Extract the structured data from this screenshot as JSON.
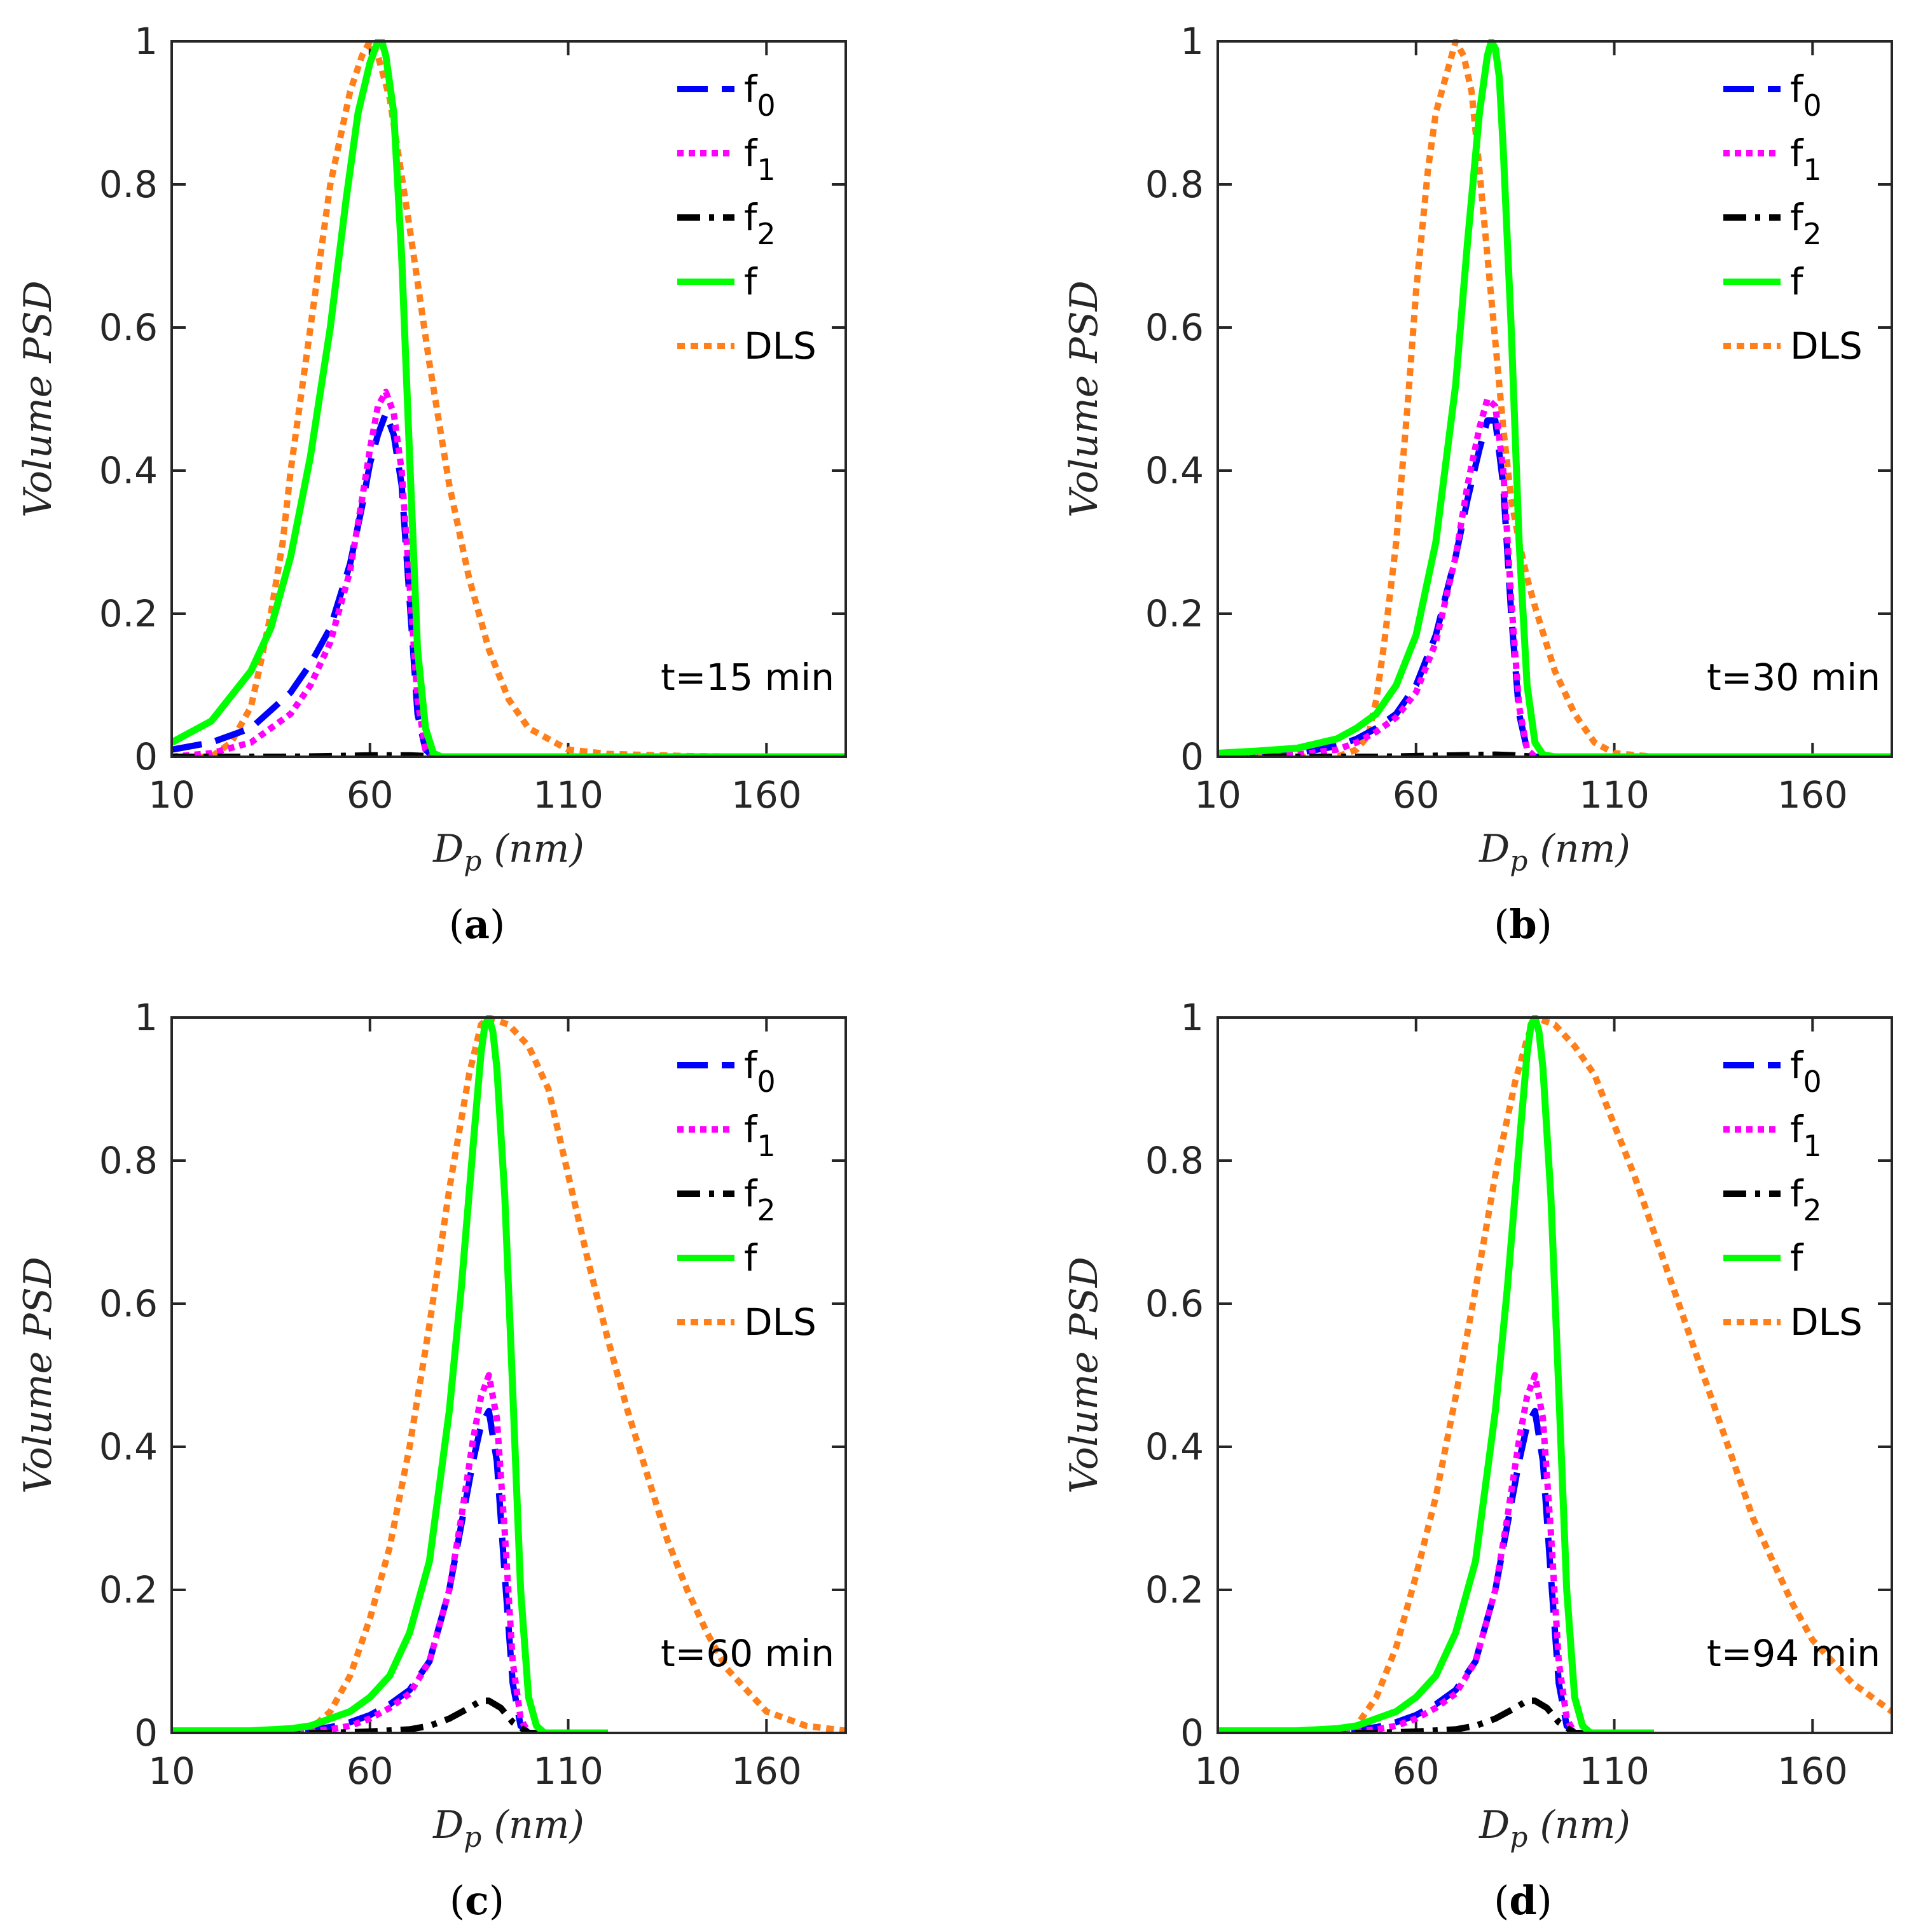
{
  "styles": {
    "f0": {
      "color": "#0000ff",
      "dash": "48 22"
    },
    "f1": {
      "color": "#ff00ff",
      "dash": "10 8"
    },
    "f2": {
      "color": "#000000",
      "dash": "36 14 8 14"
    },
    "f": {
      "color": "#00ff00",
      "dash": ""
    },
    "DLS": {
      "color": "#ff7f1a",
      "dash": "12 9"
    }
  },
  "chart_data": [
    {
      "type": "line",
      "panel_label": "a",
      "annotation": "t=15 min",
      "xlabel": "D_p (nm)",
      "ylabel": "Volume PSD",
      "xlim": [
        10,
        180
      ],
      "ylim": [
        0,
        1
      ],
      "xticks": [
        10,
        60,
        110,
        160
      ],
      "yticks": [
        0,
        0.2,
        0.4,
        0.6,
        0.8,
        1
      ],
      "series": [
        {
          "name": "f0",
          "x": [
            10,
            20,
            30,
            40,
            45,
            50,
            55,
            58,
            60,
            62,
            64,
            66,
            68,
            70,
            72,
            74,
            76,
            78,
            80,
            90,
            120,
            180
          ],
          "y": [
            0.01,
            0.02,
            0.04,
            0.09,
            0.13,
            0.18,
            0.27,
            0.35,
            0.41,
            0.45,
            0.48,
            0.45,
            0.38,
            0.22,
            0.06,
            0.01,
            0,
            0,
            0,
            0,
            0,
            0
          ]
        },
        {
          "name": "f1",
          "x": [
            10,
            20,
            30,
            40,
            45,
            50,
            55,
            58,
            60,
            62,
            64,
            66,
            68,
            70,
            72,
            74,
            76,
            78,
            80,
            90,
            120,
            180
          ],
          "y": [
            0.0,
            0.005,
            0.02,
            0.06,
            0.1,
            0.16,
            0.26,
            0.36,
            0.43,
            0.49,
            0.51,
            0.48,
            0.4,
            0.24,
            0.08,
            0.01,
            0,
            0,
            0,
            0,
            0,
            0
          ]
        },
        {
          "name": "f2",
          "x": [
            10,
            40,
            60,
            70,
            80,
            120,
            180
          ],
          "y": [
            0,
            0,
            0.002,
            0.002,
            0,
            0,
            0
          ]
        },
        {
          "name": "f",
          "x": [
            10,
            20,
            30,
            35,
            40,
            45,
            50,
            54,
            57,
            60,
            62,
            63,
            64,
            66,
            68,
            70,
            72,
            74,
            76,
            78,
            80,
            120,
            180
          ],
          "y": [
            0.02,
            0.05,
            0.12,
            0.18,
            0.28,
            0.42,
            0.6,
            0.78,
            0.9,
            0.97,
            1.0,
            1.0,
            0.98,
            0.9,
            0.7,
            0.42,
            0.15,
            0.04,
            0.005,
            0,
            0,
            0,
            0
          ]
        },
        {
          "name": "DLS",
          "x": [
            10,
            20,
            25,
            30,
            32,
            35,
            38,
            40,
            45,
            50,
            55,
            58,
            60,
            62,
            65,
            70,
            75,
            80,
            85,
            90,
            95,
            100,
            110,
            120,
            140,
            160,
            180
          ],
          "y": [
            0,
            0,
            0.02,
            0.07,
            0.12,
            0.2,
            0.3,
            0.4,
            0.6,
            0.8,
            0.93,
            0.98,
            1.0,
            0.98,
            0.92,
            0.74,
            0.55,
            0.38,
            0.25,
            0.15,
            0.08,
            0.04,
            0.01,
            0.004,
            0.001,
            0,
            0
          ]
        }
      ]
    },
    {
      "type": "line",
      "panel_label": "b",
      "annotation": "t=30 min",
      "xlabel": "D_p (nm)",
      "ylabel": "Volume PSD",
      "xlim": [
        10,
        180
      ],
      "ylim": [
        0,
        1
      ],
      "xticks": [
        10,
        60,
        110,
        160
      ],
      "yticks": [
        0,
        0.2,
        0.4,
        0.6,
        0.8,
        1
      ],
      "series": [
        {
          "name": "f0",
          "x": [
            10,
            30,
            40,
            45,
            50,
            55,
            60,
            65,
            70,
            73,
            76,
            78,
            80,
            82,
            84,
            86,
            88,
            90,
            95,
            120,
            180
          ],
          "y": [
            0,
            0.005,
            0.015,
            0.025,
            0.04,
            0.06,
            0.1,
            0.17,
            0.28,
            0.36,
            0.43,
            0.47,
            0.47,
            0.38,
            0.2,
            0.06,
            0.01,
            0,
            0,
            0,
            0
          ]
        },
        {
          "name": "f1",
          "x": [
            10,
            30,
            40,
            45,
            50,
            55,
            60,
            65,
            70,
            73,
            76,
            78,
            80,
            82,
            84,
            86,
            88,
            90,
            95,
            120,
            180
          ],
          "y": [
            0,
            0.003,
            0.01,
            0.02,
            0.035,
            0.055,
            0.09,
            0.16,
            0.28,
            0.38,
            0.46,
            0.5,
            0.49,
            0.4,
            0.22,
            0.07,
            0.01,
            0,
            0,
            0,
            0
          ]
        },
        {
          "name": "f2",
          "x": [
            10,
            50,
            70,
            80,
            85,
            90,
            120,
            180
          ],
          "y": [
            0,
            0,
            0.002,
            0.003,
            0.002,
            0,
            0,
            0
          ]
        },
        {
          "name": "f",
          "x": [
            10,
            20,
            30,
            40,
            45,
            50,
            55,
            60,
            65,
            70,
            73,
            76,
            78,
            79,
            80,
            81,
            82,
            84,
            86,
            88,
            90,
            92,
            95,
            120,
            180
          ],
          "y": [
            0.005,
            0.008,
            0.012,
            0.025,
            0.04,
            0.06,
            0.1,
            0.17,
            0.3,
            0.52,
            0.72,
            0.9,
            0.98,
            1.0,
            0.99,
            0.95,
            0.85,
            0.6,
            0.3,
            0.1,
            0.02,
            0.003,
            0,
            0,
            0
          ]
        },
        {
          "name": "DLS",
          "x": [
            10,
            30,
            40,
            45,
            48,
            50,
            52,
            55,
            58,
            60,
            63,
            65,
            68,
            70,
            72,
            74,
            76,
            78,
            80,
            82,
            84,
            86,
            88,
            90,
            95,
            100,
            105,
            110,
            120,
            180
          ],
          "y": [
            0,
            0,
            0,
            0.01,
            0.03,
            0.08,
            0.16,
            0.3,
            0.5,
            0.65,
            0.82,
            0.9,
            0.96,
            1.0,
            0.98,
            0.93,
            0.82,
            0.7,
            0.58,
            0.46,
            0.36,
            0.3,
            0.25,
            0.21,
            0.12,
            0.06,
            0.02,
            0.005,
            0,
            0
          ]
        }
      ]
    },
    {
      "type": "line",
      "panel_label": "c",
      "annotation": "t=60 min",
      "xlabel": "D_p (nm)",
      "ylabel": "Volume PSD",
      "xlim": [
        10,
        180
      ],
      "ylim": [
        0,
        1
      ],
      "xticks": [
        10,
        60,
        110,
        160
      ],
      "yticks": [
        0,
        0.2,
        0.4,
        0.6,
        0.8,
        1
      ],
      "series": [
        {
          "name": "f0",
          "x": [
            10,
            40,
            50,
            55,
            60,
            65,
            70,
            75,
            80,
            83,
            86,
            88,
            90,
            92,
            94,
            96,
            98,
            100,
            105,
            120
          ],
          "y": [
            0,
            0.002,
            0.008,
            0.015,
            0.025,
            0.04,
            0.06,
            0.1,
            0.2,
            0.29,
            0.38,
            0.43,
            0.45,
            0.38,
            0.22,
            0.07,
            0.01,
            0,
            0,
            0
          ]
        },
        {
          "name": "f1",
          "x": [
            10,
            40,
            50,
            55,
            60,
            65,
            70,
            75,
            80,
            83,
            86,
            88,
            90,
            92,
            94,
            96,
            98,
            100,
            105,
            120
          ],
          "y": [
            0,
            0.001,
            0.005,
            0.01,
            0.02,
            0.035,
            0.055,
            0.1,
            0.2,
            0.3,
            0.41,
            0.47,
            0.5,
            0.44,
            0.28,
            0.1,
            0.02,
            0,
            0,
            0
          ]
        },
        {
          "name": "f2",
          "x": [
            10,
            50,
            60,
            70,
            75,
            80,
            85,
            88,
            90,
            93,
            96,
            100,
            120
          ],
          "y": [
            0,
            0,
            0.002,
            0.005,
            0.01,
            0.02,
            0.035,
            0.045,
            0.045,
            0.035,
            0.015,
            0,
            0
          ]
        },
        {
          "name": "f",
          "x": [
            10,
            30,
            40,
            45,
            50,
            55,
            60,
            65,
            70,
            75,
            80,
            83,
            86,
            88,
            89,
            90,
            91,
            92,
            94,
            96,
            98,
            100,
            102,
            104,
            110,
            120
          ],
          "y": [
            0.003,
            0.003,
            0.006,
            0.01,
            0.02,
            0.03,
            0.05,
            0.08,
            0.14,
            0.24,
            0.45,
            0.62,
            0.82,
            0.95,
            0.99,
            1.0,
            0.98,
            0.93,
            0.75,
            0.48,
            0.2,
            0.05,
            0.01,
            0,
            0,
            0
          ]
        },
        {
          "name": "DLS",
          "x": [
            10,
            30,
            40,
            45,
            50,
            55,
            60,
            65,
            70,
            75,
            80,
            85,
            88,
            90,
            95,
            100,
            105,
            110,
            115,
            120,
            125,
            130,
            135,
            140,
            145,
            150,
            155,
            160,
            170,
            180
          ],
          "y": [
            0,
            0,
            0,
            0.005,
            0.03,
            0.08,
            0.16,
            0.26,
            0.4,
            0.57,
            0.76,
            0.92,
            0.99,
            1.0,
            0.99,
            0.96,
            0.9,
            0.78,
            0.66,
            0.55,
            0.45,
            0.36,
            0.27,
            0.2,
            0.14,
            0.09,
            0.06,
            0.03,
            0.01,
            0.003
          ]
        }
      ]
    },
    {
      "type": "line",
      "panel_label": "d",
      "annotation": "t=94 min",
      "xlabel": "D_p (nm)",
      "ylabel": "Volume PSD",
      "xlim": [
        10,
        180
      ],
      "ylim": [
        0,
        1
      ],
      "xticks": [
        10,
        60,
        110,
        160
      ],
      "yticks": [
        0,
        0.2,
        0.4,
        0.6,
        0.8,
        1
      ],
      "series": [
        {
          "name": "f0",
          "x": [
            10,
            40,
            50,
            55,
            60,
            65,
            70,
            75,
            80,
            83,
            86,
            88,
            90,
            92,
            94,
            96,
            98,
            100,
            105,
            120
          ],
          "y": [
            0,
            0.002,
            0.008,
            0.015,
            0.025,
            0.04,
            0.06,
            0.1,
            0.2,
            0.29,
            0.38,
            0.43,
            0.45,
            0.38,
            0.22,
            0.07,
            0.01,
            0,
            0,
            0
          ]
        },
        {
          "name": "f1",
          "x": [
            10,
            40,
            50,
            55,
            60,
            65,
            70,
            75,
            80,
            83,
            86,
            88,
            90,
            92,
            94,
            96,
            98,
            100,
            105,
            120
          ],
          "y": [
            0,
            0.001,
            0.005,
            0.01,
            0.02,
            0.035,
            0.055,
            0.1,
            0.2,
            0.3,
            0.41,
            0.47,
            0.5,
            0.44,
            0.28,
            0.1,
            0.02,
            0,
            0,
            0
          ]
        },
        {
          "name": "f2",
          "x": [
            10,
            50,
            60,
            70,
            75,
            80,
            85,
            88,
            90,
            93,
            96,
            100,
            120
          ],
          "y": [
            0,
            0,
            0.002,
            0.005,
            0.01,
            0.02,
            0.035,
            0.045,
            0.045,
            0.035,
            0.015,
            0,
            0
          ]
        },
        {
          "name": "f",
          "x": [
            10,
            30,
            40,
            45,
            50,
            55,
            60,
            65,
            70,
            75,
            80,
            83,
            86,
            88,
            89,
            90,
            91,
            92,
            94,
            96,
            98,
            100,
            102,
            104,
            110,
            120
          ],
          "y": [
            0.003,
            0.003,
            0.006,
            0.01,
            0.02,
            0.03,
            0.05,
            0.08,
            0.14,
            0.24,
            0.45,
            0.62,
            0.82,
            0.95,
            0.99,
            1.0,
            0.98,
            0.93,
            0.75,
            0.48,
            0.2,
            0.05,
            0.01,
            0,
            0,
            0
          ]
        },
        {
          "name": "DLS",
          "x": [
            10,
            30,
            40,
            45,
            50,
            55,
            60,
            65,
            70,
            75,
            80,
            85,
            88,
            90,
            95,
            100,
            105,
            110,
            115,
            120,
            125,
            130,
            135,
            140,
            145,
            150,
            155,
            160,
            170,
            180
          ],
          "y": [
            0,
            0,
            0,
            0.01,
            0.05,
            0.12,
            0.22,
            0.33,
            0.47,
            0.62,
            0.78,
            0.91,
            0.97,
            1.0,
            0.99,
            0.96,
            0.92,
            0.85,
            0.78,
            0.7,
            0.62,
            0.54,
            0.46,
            0.38,
            0.3,
            0.24,
            0.18,
            0.13,
            0.07,
            0.03
          ]
        }
      ]
    }
  ],
  "legend_entries": [
    {
      "label": "f",
      "sub": "0",
      "key": "f0"
    },
    {
      "label": "f",
      "sub": "1",
      "key": "f1"
    },
    {
      "label": "f",
      "sub": "2",
      "key": "f2"
    },
    {
      "label": "f",
      "sub": "",
      "key": "f"
    },
    {
      "label": "DLS",
      "sub": "",
      "key": "DLS"
    }
  ]
}
